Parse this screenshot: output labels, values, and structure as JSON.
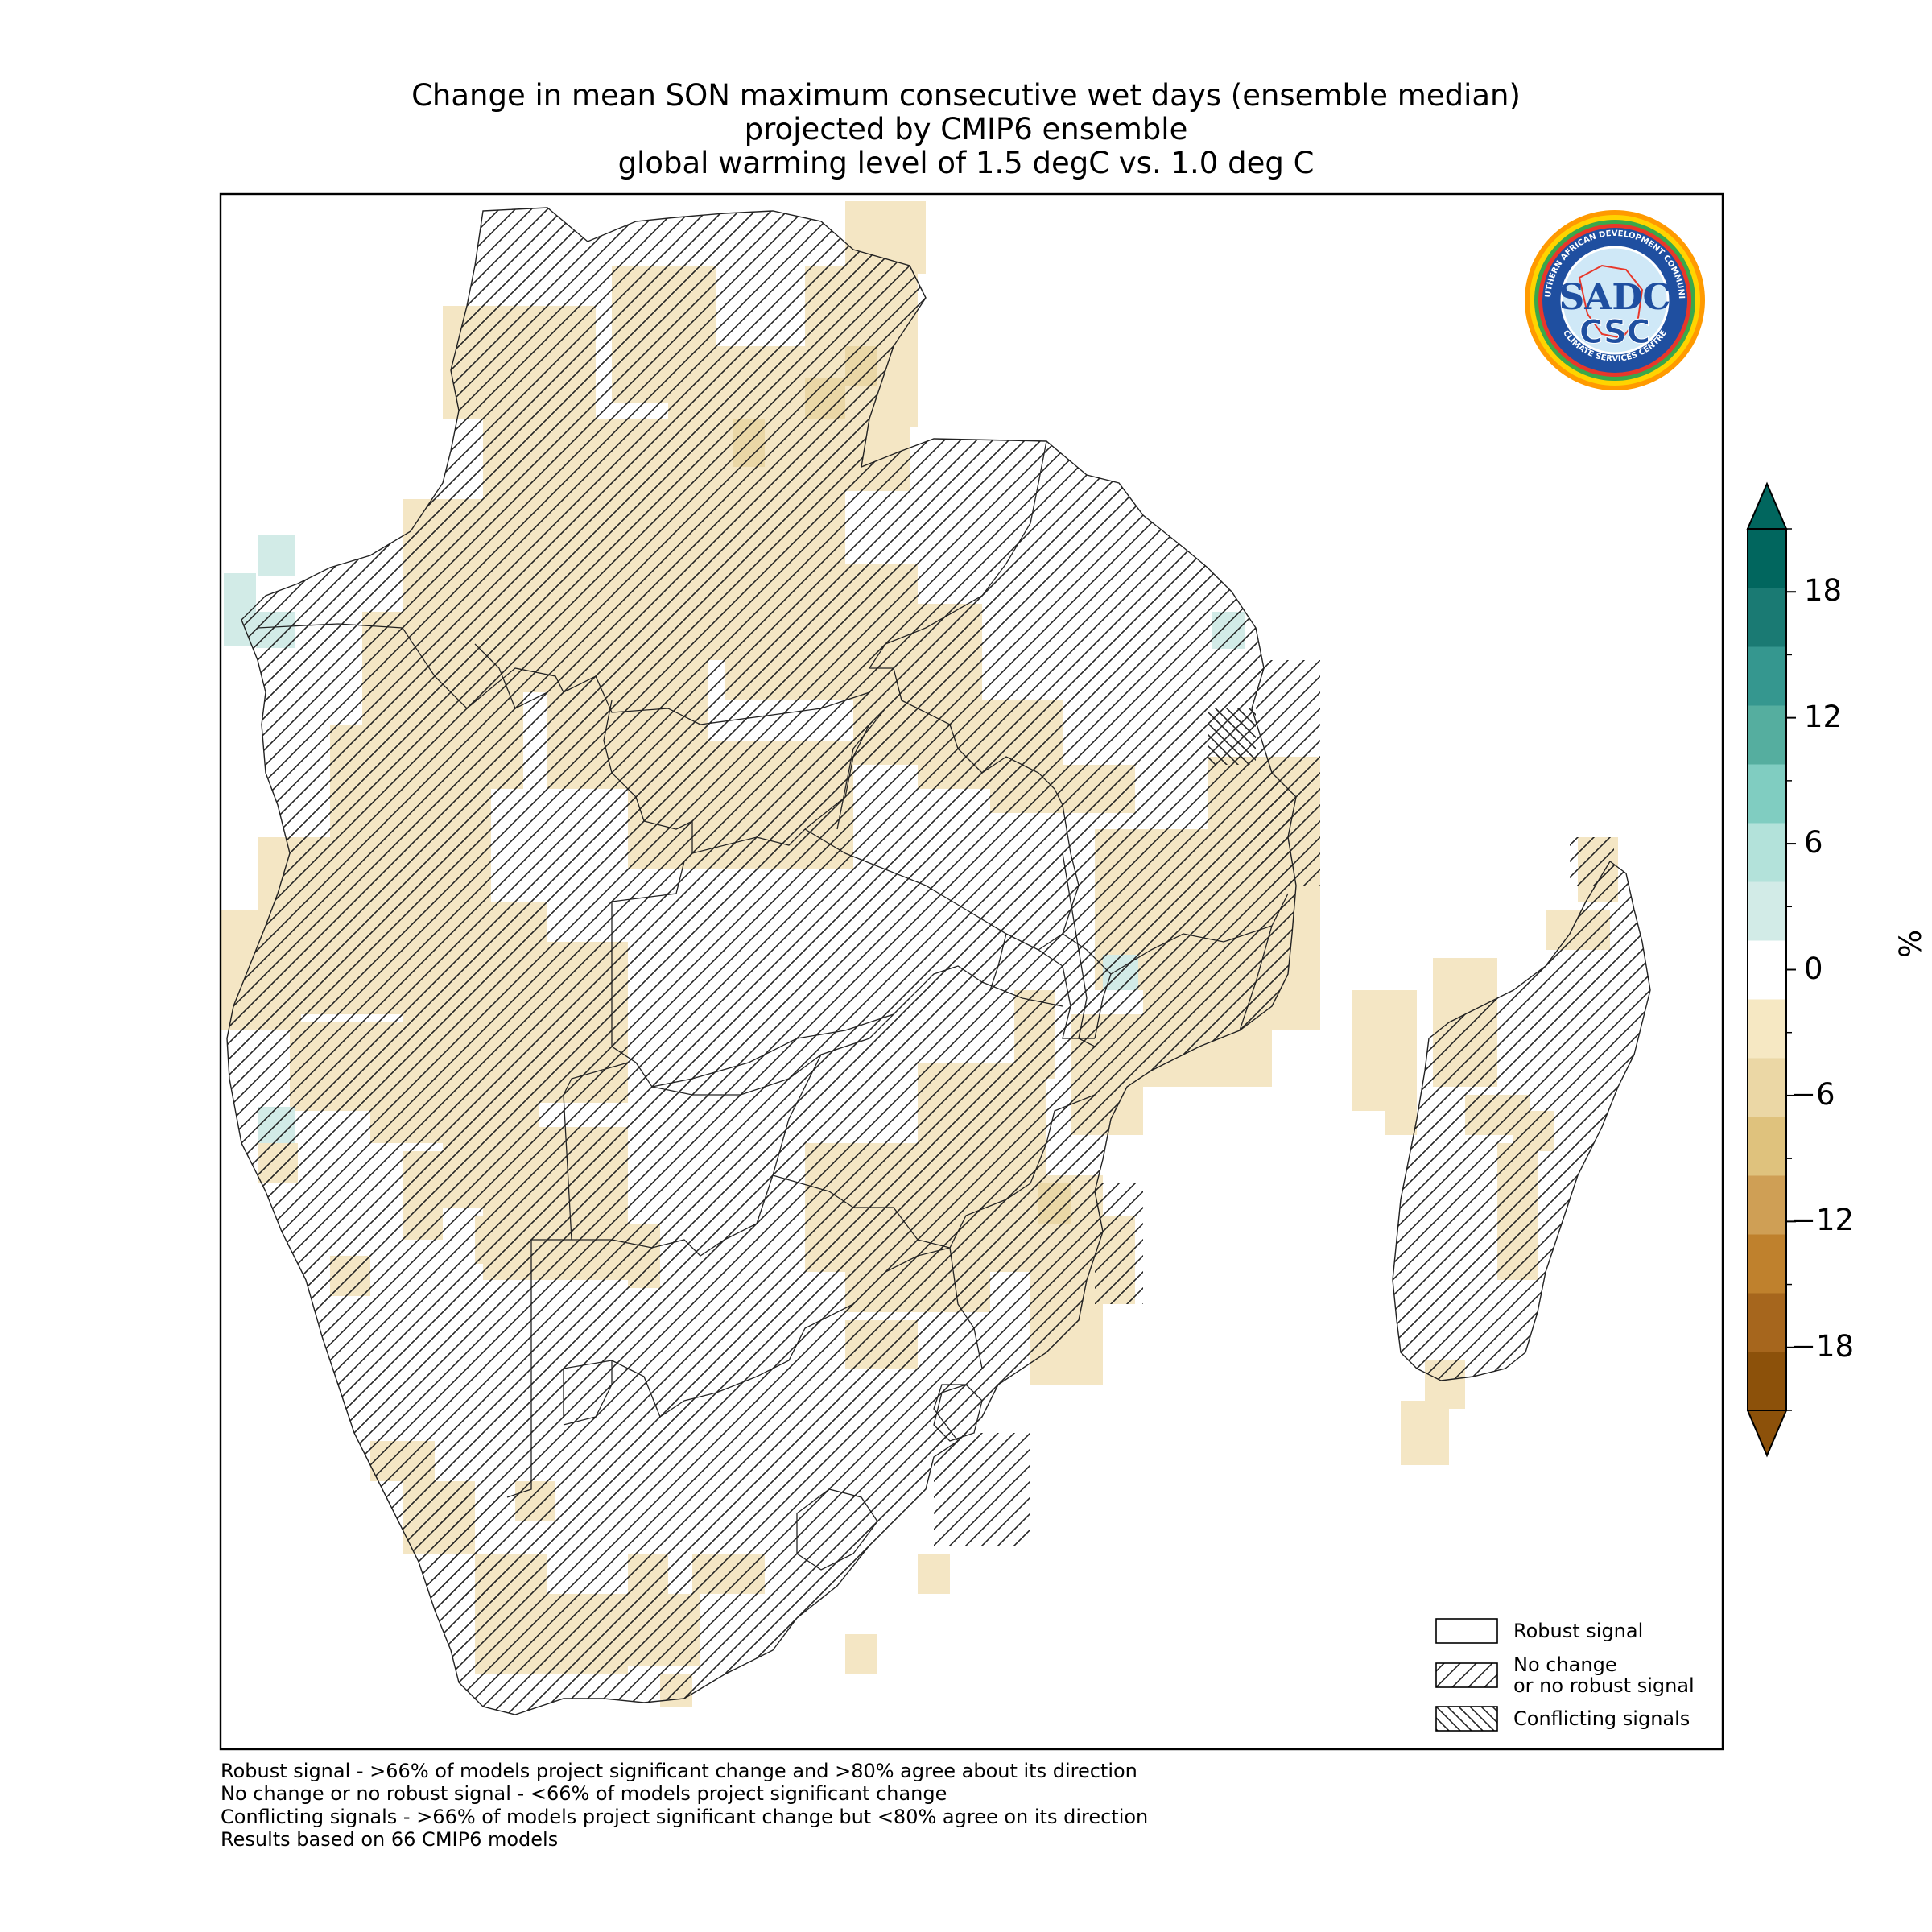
{
  "title": {
    "line1": "Change in mean SON maximum consecutive wet days (ensemble median)",
    "line2": "projected by CMIP6 ensemble",
    "line3": "global warming level of 1.5 degC vs. 1.0 deg C"
  },
  "logo": {
    "ring_text_top": "SOUTHERN AFRICAN DEVELOPMENT COMMUNITY",
    "ring_text_bottom": "CLIMATE SERVICES CENTRE",
    "mark": "SADC",
    "abbr": "CSC",
    "colors": {
      "outer": "#e8372a",
      "ring": "#1f4fa0",
      "inner": "#cfe8f7"
    }
  },
  "legend": {
    "items": [
      {
        "label": "Robust signal",
        "pattern": "none"
      },
      {
        "label": "No change\nor no robust signal",
        "pattern": "forward-hatch"
      },
      {
        "label": "Conflicting signals",
        "pattern": "back-hatch"
      }
    ]
  },
  "colorbar": {
    "units": "%",
    "tick_labels": [
      "18",
      "12",
      "6",
      "0",
      "−6",
      "−12",
      "−18"
    ],
    "ticks": [
      18,
      12,
      6,
      0,
      -6,
      -12,
      -18
    ],
    "range": [
      -21,
      21
    ],
    "colors": [
      "#8c510a",
      "#a6661d",
      "#bf812d",
      "#cf9f55",
      "#dfc27d",
      "#ebd7a5",
      "#f6e8c3",
      "#ffffff",
      "#d2ebe7",
      "#b3e2da",
      "#80cdc1",
      "#55ae9f",
      "#35978f",
      "#1a7a73",
      "#01665e"
    ],
    "extend": "both"
  },
  "footnotes": [
    "Robust signal - >66% of models project significant change and >80% agree about its direction",
    "No change or no robust signal - <66% of models project significant change",
    "Conflicting signals - >66% of models project significant change but <80% agree on its direction",
    "Results based on 66 CMIP6 models"
  ]
}
